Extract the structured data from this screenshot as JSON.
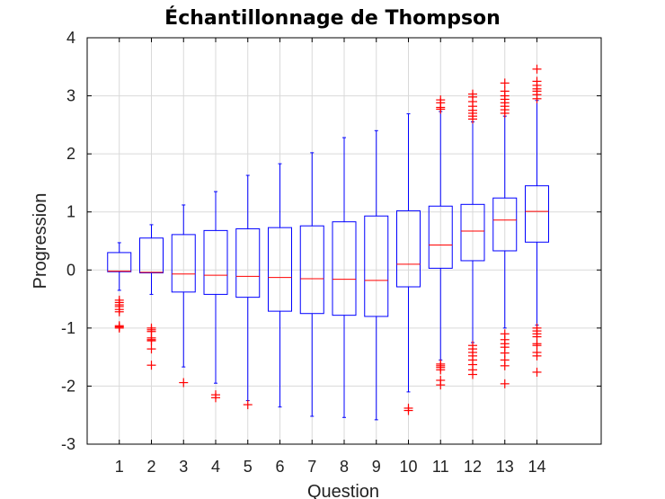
{
  "chart_data": {
    "type": "boxplot",
    "title": "Échantillonnage de Thompson",
    "xlabel": "Question",
    "ylabel": "Progression",
    "categories": [
      "1",
      "2",
      "3",
      "4",
      "5",
      "6",
      "7",
      "8",
      "9",
      "10",
      "11",
      "12",
      "13",
      "14"
    ],
    "ylim": [
      -3,
      4
    ],
    "xlim": [
      0,
      16
    ],
    "yticks": [
      -3,
      -2,
      -1,
      0,
      1,
      2,
      3,
      4
    ],
    "grid": true,
    "colors": {
      "box": "#0000ff",
      "median": "#ff0000",
      "outlier": "#ff0000",
      "grid": "#d9d9d9",
      "frame": "#000000"
    },
    "boxes": [
      {
        "category": "1",
        "whisker_low": -0.35,
        "q1": -0.03,
        "median": -0.02,
        "q3": 0.3,
        "whisker_high": 0.47,
        "outliers": [
          -0.52,
          -0.56,
          -0.6,
          -0.63,
          -0.68,
          -0.72,
          -0.96,
          -0.98,
          -1.0
        ]
      },
      {
        "category": "2",
        "whisker_low": -0.42,
        "q1": -0.05,
        "median": -0.04,
        "q3": 0.55,
        "whisker_high": 0.78,
        "outliers": [
          -1.0,
          -1.03,
          -1.06,
          -1.17,
          -1.2,
          -1.22,
          -1.36,
          -1.64
        ]
      },
      {
        "category": "3",
        "whisker_low": -1.67,
        "q1": -0.38,
        "median": -0.07,
        "q3": 0.61,
        "whisker_high": 1.12,
        "outliers": [
          -1.94
        ]
      },
      {
        "category": "4",
        "whisker_low": -1.95,
        "q1": -0.42,
        "median": -0.09,
        "q3": 0.68,
        "whisker_high": 1.35,
        "outliers": [
          -2.15,
          -2.2
        ]
      },
      {
        "category": "5",
        "whisker_low": -2.25,
        "q1": -0.47,
        "median": -0.11,
        "q3": 0.71,
        "whisker_high": 1.63,
        "outliers": [
          -2.32
        ]
      },
      {
        "category": "6",
        "whisker_low": -2.36,
        "q1": -0.71,
        "median": -0.13,
        "q3": 0.73,
        "whisker_high": 1.83,
        "outliers": []
      },
      {
        "category": "7",
        "whisker_low": -2.52,
        "q1": -0.75,
        "median": -0.15,
        "q3": 0.76,
        "whisker_high": 2.02,
        "outliers": []
      },
      {
        "category": "8",
        "whisker_low": -2.54,
        "q1": -0.78,
        "median": -0.16,
        "q3": 0.83,
        "whisker_high": 2.28,
        "outliers": []
      },
      {
        "category": "9",
        "whisker_low": -2.58,
        "q1": -0.8,
        "median": -0.18,
        "q3": 0.93,
        "whisker_high": 2.4,
        "outliers": []
      },
      {
        "category": "10",
        "whisker_low": -2.1,
        "q1": -0.29,
        "median": 0.1,
        "q3": 1.02,
        "whisker_high": 2.69,
        "outliers": [
          -2.38,
          -2.42
        ]
      },
      {
        "category": "11",
        "whisker_low": -1.55,
        "q1": 0.03,
        "median": 0.43,
        "q3": 1.1,
        "whisker_high": 2.73,
        "outliers": [
          -1.62,
          -1.65,
          -1.68,
          -1.72,
          -1.9,
          -1.98,
          2.77,
          2.8,
          2.88,
          2.93
        ]
      },
      {
        "category": "12",
        "whisker_low": -1.25,
        "q1": 0.16,
        "median": 0.67,
        "q3": 1.13,
        "whisker_high": 2.55,
        "outliers": [
          -1.3,
          -1.36,
          -1.42,
          -1.48,
          -1.55,
          -1.63,
          -1.72,
          -1.8,
          2.6,
          2.65,
          2.7,
          2.75,
          2.82,
          2.9,
          2.98,
          3.03
        ]
      },
      {
        "category": "13",
        "whisker_low": -1.0,
        "q1": 0.33,
        "median": 0.86,
        "q3": 1.24,
        "whisker_high": 2.65,
        "outliers": [
          -1.1,
          -1.2,
          -1.27,
          -1.33,
          -1.43,
          -1.55,
          -1.65,
          -1.96,
          2.7,
          2.76,
          2.82,
          2.88,
          2.94,
          3.0,
          3.08,
          3.22
        ]
      },
      {
        "category": "14",
        "whisker_low": -0.95,
        "q1": 0.48,
        "median": 1.01,
        "q3": 1.45,
        "whisker_high": 2.92,
        "outliers": [
          -1.0,
          -1.05,
          -1.1,
          -1.15,
          -1.27,
          -1.3,
          -1.42,
          -1.48,
          -1.76,
          2.95,
          3.02,
          3.08,
          3.12,
          3.18,
          3.25,
          3.46
        ]
      }
    ]
  }
}
